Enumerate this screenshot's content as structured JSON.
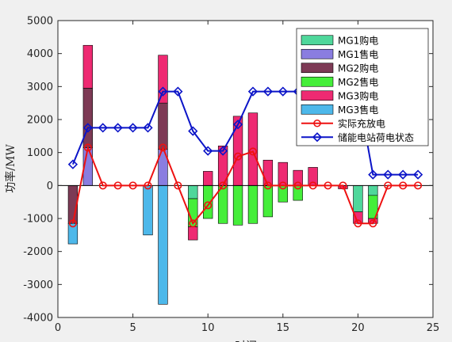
{
  "chart_data": {
    "type": "bar",
    "xlabel": "时间",
    "ylabel": "功率/MW",
    "xlim": [
      0,
      25
    ],
    "ylim": [
      -4000,
      5000
    ],
    "xticks": [
      0,
      5,
      10,
      15,
      20,
      25
    ],
    "yticks": [
      -4000,
      -3000,
      -2000,
      -1000,
      0,
      1000,
      2000,
      3000,
      4000,
      5000
    ],
    "grid": false,
    "legend_position": "top-right",
    "x": [
      1,
      2,
      3,
      4,
      5,
      6,
      7,
      8,
      9,
      10,
      11,
      12,
      13,
      14,
      15,
      16,
      17,
      18,
      19,
      20,
      21,
      22,
      23,
      24
    ],
    "stacked_bars": [
      {
        "name": "MG1购电",
        "color": "#4fd79b",
        "values": [
          0,
          0,
          0,
          0,
          0,
          0,
          0,
          0,
          -400,
          0,
          0,
          0,
          0,
          0,
          0,
          0,
          0,
          0,
          0,
          -800,
          -300,
          0,
          0,
          0
        ]
      },
      {
        "name": "MG1售电",
        "color": "#8a7de0",
        "values": [
          0,
          1150,
          0,
          0,
          0,
          0,
          1100,
          0,
          0,
          0,
          0,
          0,
          0,
          0,
          0,
          0,
          0,
          0,
          0,
          0,
          0,
          0,
          0,
          0
        ]
      },
      {
        "name": "MG2购电",
        "color": "#7d3a55",
        "values": [
          -1150,
          1800,
          0,
          0,
          0,
          0,
          1400,
          0,
          0,
          0,
          0,
          0,
          0,
          0,
          0,
          0,
          0,
          0,
          0,
          0,
          0,
          0,
          0,
          0
        ]
      },
      {
        "name": "MG2售电",
        "color": "#45ee3a",
        "values": [
          0,
          0,
          0,
          0,
          0,
          0,
          0,
          0,
          -850,
          -1000,
          -1150,
          -1200,
          -1150,
          -950,
          -500,
          -450,
          0,
          0,
          0,
          0,
          -700,
          0,
          0,
          0
        ]
      },
      {
        "name": "MG3购电",
        "color": "#ee2a72",
        "values": [
          0,
          1300,
          0,
          0,
          0,
          0,
          1450,
          0,
          -400,
          430,
          1200,
          2100,
          2200,
          770,
          700,
          460,
          550,
          0,
          -100,
          -350,
          -150,
          0,
          0,
          0
        ]
      },
      {
        "name": "MG3售电",
        "color": "#4db8ea",
        "values": [
          -620,
          0,
          0,
          0,
          0,
          -1500,
          -3600,
          0,
          0,
          0,
          0,
          0,
          0,
          0,
          0,
          0,
          0,
          0,
          0,
          0,
          0,
          0,
          0,
          0
        ]
      }
    ],
    "lines": [
      {
        "name": "实际充放电",
        "color": "#ee1111",
        "marker": "circle",
        "values": [
          -1150,
          1150,
          0,
          0,
          0,
          0,
          1150,
          0,
          -1150,
          -600,
          0,
          880,
          1030,
          0,
          0,
          0,
          0,
          0,
          0,
          -1150,
          -1150,
          0,
          0,
          0
        ]
      },
      {
        "name": "储能电站荷电状态",
        "color": "#0b14c8",
        "marker": "diamond",
        "values": [
          640,
          1750,
          1750,
          1750,
          1750,
          1750,
          2850,
          2850,
          1650,
          1050,
          1050,
          1850,
          2850,
          2850,
          2850,
          2850,
          2850,
          2850,
          2850,
          2850,
          330,
          330,
          330,
          330
        ]
      }
    ]
  }
}
